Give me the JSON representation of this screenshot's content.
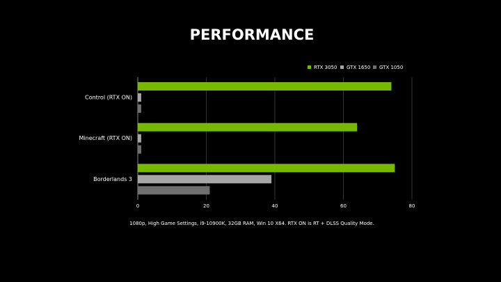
{
  "chart_data": {
    "type": "bar",
    "orientation": "horizontal",
    "title": "PERFORMANCE",
    "note": "1080p, High Game Settings, i9-10900K, 32GB RAM, Win 10 X64. RTX ON is RT + DLSS Quality Mode.",
    "categories": [
      "Control (RTX ON)",
      "Minecraft (RTX ON)",
      "Borderlands 3"
    ],
    "series": [
      {
        "name": "RTX 3050",
        "color": "#76b900",
        "values": [
          74,
          64,
          75
        ]
      },
      {
        "name": "GTX 1650",
        "color": "#a6a6a6",
        "values": [
          1,
          1,
          39
        ]
      },
      {
        "name": "GTX 1050",
        "color": "#6f6f6f",
        "values": [
          1,
          1,
          21
        ]
      }
    ],
    "xlim": [
      0,
      80
    ],
    "xticks": [
      0,
      20,
      40,
      60,
      80
    ],
    "grid": true,
    "legend": "top-right"
  }
}
